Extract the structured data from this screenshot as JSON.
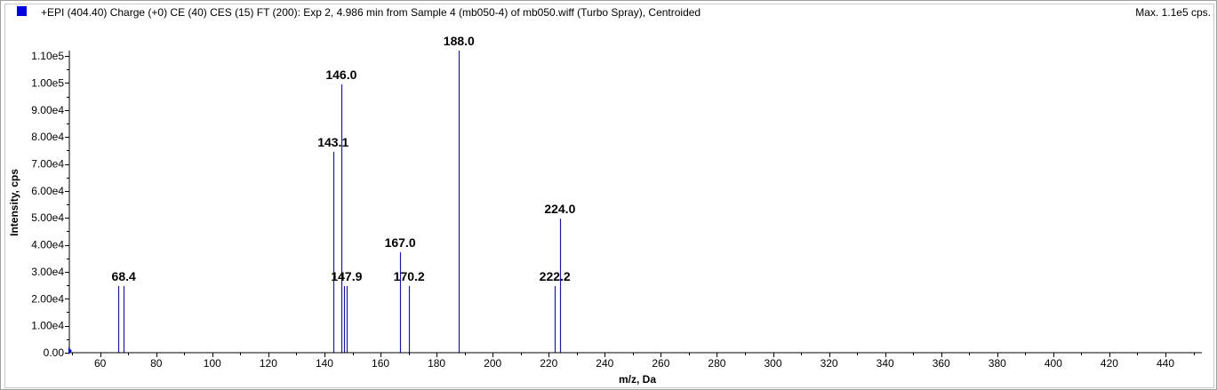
{
  "header": {
    "title": "+EPI (404.40) Charge (+0) CE (40) CES (15) FT (200): Exp 2, 4.986 min from Sample 4 (mb050-4) of mb050.wiff (Turbo Spray), Centroided",
    "max_label": "Max. 1.1e5 cps."
  },
  "colors": {
    "series": "#1a1aa0",
    "legend_marker": "#0000e0"
  },
  "chart_data": {
    "type": "bar",
    "title": "+EPI (404.40) Charge (+0) CE (40) CES (15) FT (200): Exp 2, 4.986 min from Sample 4 (mb050-4) of mb050.wiff (Turbo Spray), Centroided",
    "xlabel": "m/z, Da",
    "ylabel": "Intensity, cps",
    "xlim": [
      49,
      453
    ],
    "ylim": [
      0,
      112000
    ],
    "x_ticks": [
      "60",
      "80",
      "100",
      "120",
      "140",
      "160",
      "180",
      "200",
      "220",
      "240",
      "260",
      "280",
      "300",
      "320",
      "340",
      "360",
      "380",
      "400",
      "420",
      "440"
    ],
    "y_ticks": [
      "0.00",
      "1.00e4",
      "2.00e4",
      "3.00e4",
      "4.00e4",
      "5.00e4",
      "6.00e4",
      "7.00e4",
      "8.00e4",
      "9.00e4",
      "1.00e5",
      "1.10e5"
    ],
    "x_tick_values": [
      60,
      80,
      100,
      120,
      140,
      160,
      180,
      200,
      220,
      240,
      260,
      280,
      300,
      320,
      340,
      360,
      380,
      400,
      420,
      440
    ],
    "y_tick_values": [
      0,
      10000,
      20000,
      30000,
      40000,
      50000,
      60000,
      70000,
      80000,
      90000,
      100000,
      110000
    ],
    "peaks": [
      {
        "mz": 66.3,
        "intensity": 24700
      },
      {
        "mz": 68.4,
        "intensity": 24700,
        "label": "68.4"
      },
      {
        "mz": 143.1,
        "intensity": 74500,
        "label": "143.1"
      },
      {
        "mz": 146.0,
        "intensity": 99500,
        "label": "146.0"
      },
      {
        "mz": 146.9,
        "intensity": 24700
      },
      {
        "mz": 147.9,
        "intensity": 24700,
        "label": "147.9"
      },
      {
        "mz": 167.0,
        "intensity": 37200,
        "label": "167.0"
      },
      {
        "mz": 170.2,
        "intensity": 24700,
        "label": "170.2"
      },
      {
        "mz": 188.0,
        "intensity": 112000,
        "label": "188.0"
      },
      {
        "mz": 222.2,
        "intensity": 24700,
        "label": "222.2"
      },
      {
        "mz": 224.0,
        "intensity": 49700,
        "label": "224.0"
      }
    ]
  }
}
